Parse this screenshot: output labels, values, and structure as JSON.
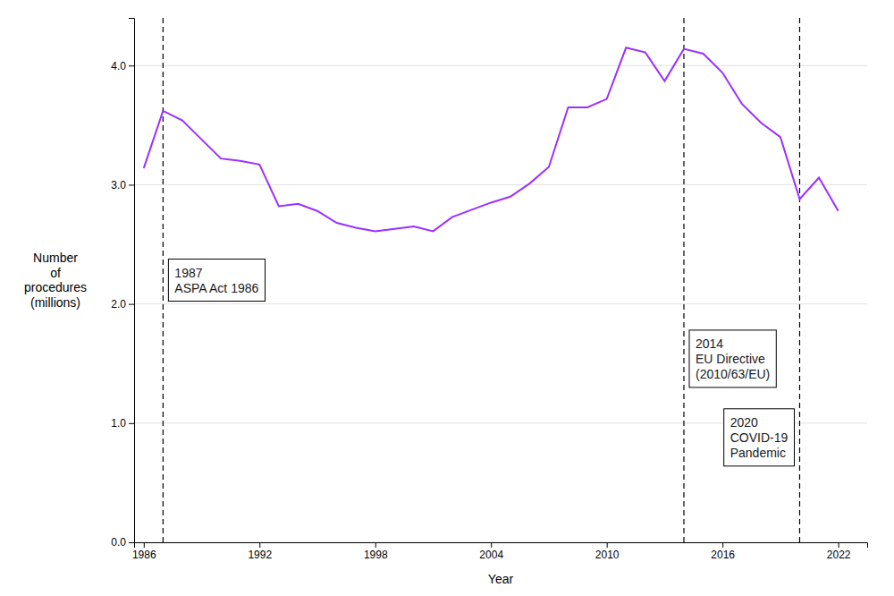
{
  "chart_data": {
    "type": "line",
    "x": [
      1986,
      1987,
      1988,
      1989,
      1990,
      1991,
      1992,
      1993,
      1994,
      1995,
      1996,
      1997,
      1998,
      1999,
      2000,
      2001,
      2002,
      2003,
      2004,
      2005,
      2006,
      2007,
      2008,
      2009,
      2010,
      2011,
      2012,
      2013,
      2014,
      2015,
      2016,
      2017,
      2018,
      2019,
      2020,
      2021,
      2022
    ],
    "values": [
      3.14,
      3.62,
      3.54,
      3.38,
      3.22,
      3.2,
      3.17,
      2.82,
      2.84,
      2.78,
      2.68,
      2.64,
      2.61,
      2.63,
      2.65,
      2.61,
      2.73,
      2.79,
      2.85,
      2.9,
      3.01,
      3.15,
      3.65,
      3.65,
      3.72,
      4.15,
      4.11,
      3.87,
      4.14,
      4.1,
      3.94,
      3.68,
      3.52,
      3.4,
      2.88,
      3.06,
      2.78
    ],
    "color": "#9B30FF",
    "xlabel": "Year",
    "ylabel": "Number\nof\nprocedures\n(millions)",
    "xlim": [
      1985.5,
      2023.5
    ],
    "xticks": [
      1986,
      1992,
      1998,
      2004,
      2010,
      2016,
      2022
    ],
    "ylim": [
      0.0,
      4.4
    ],
    "yticks": [
      {
        "value": 0.0,
        "label": "0.0"
      },
      {
        "value": 1.0,
        "label": "1.0"
      },
      {
        "value": 2.0,
        "label": "2.0"
      },
      {
        "value": 3.0,
        "label": "3.0"
      },
      {
        "value": 4.0,
        "label": "4.0"
      }
    ],
    "grid": "y",
    "annotations": [
      {
        "x": 1987,
        "label": "1987\nASPA Act 1986"
      },
      {
        "x": 2014,
        "label": "2014\nEU Directive\n(2010/63/EU)"
      },
      {
        "x": 2020,
        "label": "2020\nCOVID-19\nPandemic"
      }
    ]
  }
}
